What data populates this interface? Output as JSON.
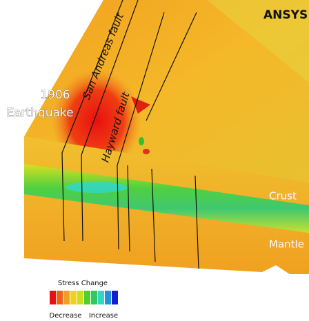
{
  "logo": "ANSYS",
  "labels": {
    "event_year": "1906",
    "event_name": "Earthquake",
    "fault_1": "San Andreas fault",
    "fault_2": "Hayward fault",
    "layer_1": "Crust",
    "layer_2": "Mantle"
  },
  "legend": {
    "title": "Stress Change",
    "low": "Decrease",
    "high": "Increase"
  }
}
